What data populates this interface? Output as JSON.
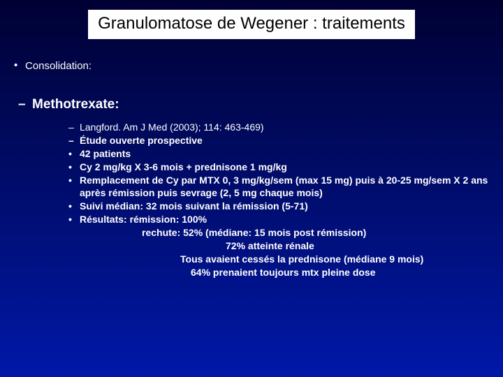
{
  "title": "Granulomatose de Wegener : traitements",
  "l1": "Consolidation:",
  "l2": "Methotrexate:",
  "ref": "Langford. Am J Med (2003); 114: 463-469)",
  "study": "Étude ouverte prospective",
  "p1": "42 patients",
  "p2": "Cy 2 mg/kg  X 3-6 mois + prednisone 1 mg/kg",
  "p3": "Remplacement de Cy par MTX 0, 3 mg/kg/sem (max 15 mg) puis    à 20-25 mg/sem X 2 ans après rémission puis sevrage (2, 5 mg chaque mois)",
  "p4": "Suivi médian: 32 mois suivant la rémission (5-71)",
  "p5a": "Résultats: rémission: 100%",
  "p5b": "rechute:     52% (médiane: 15 mois post rémission)",
  "p5c": "72% atteinte rénale",
  "p5d": "Tous avaient cessés la prednisone (médiane 9 mois)",
  "p5e": "64% prenaient toujours mtx pleine dose"
}
